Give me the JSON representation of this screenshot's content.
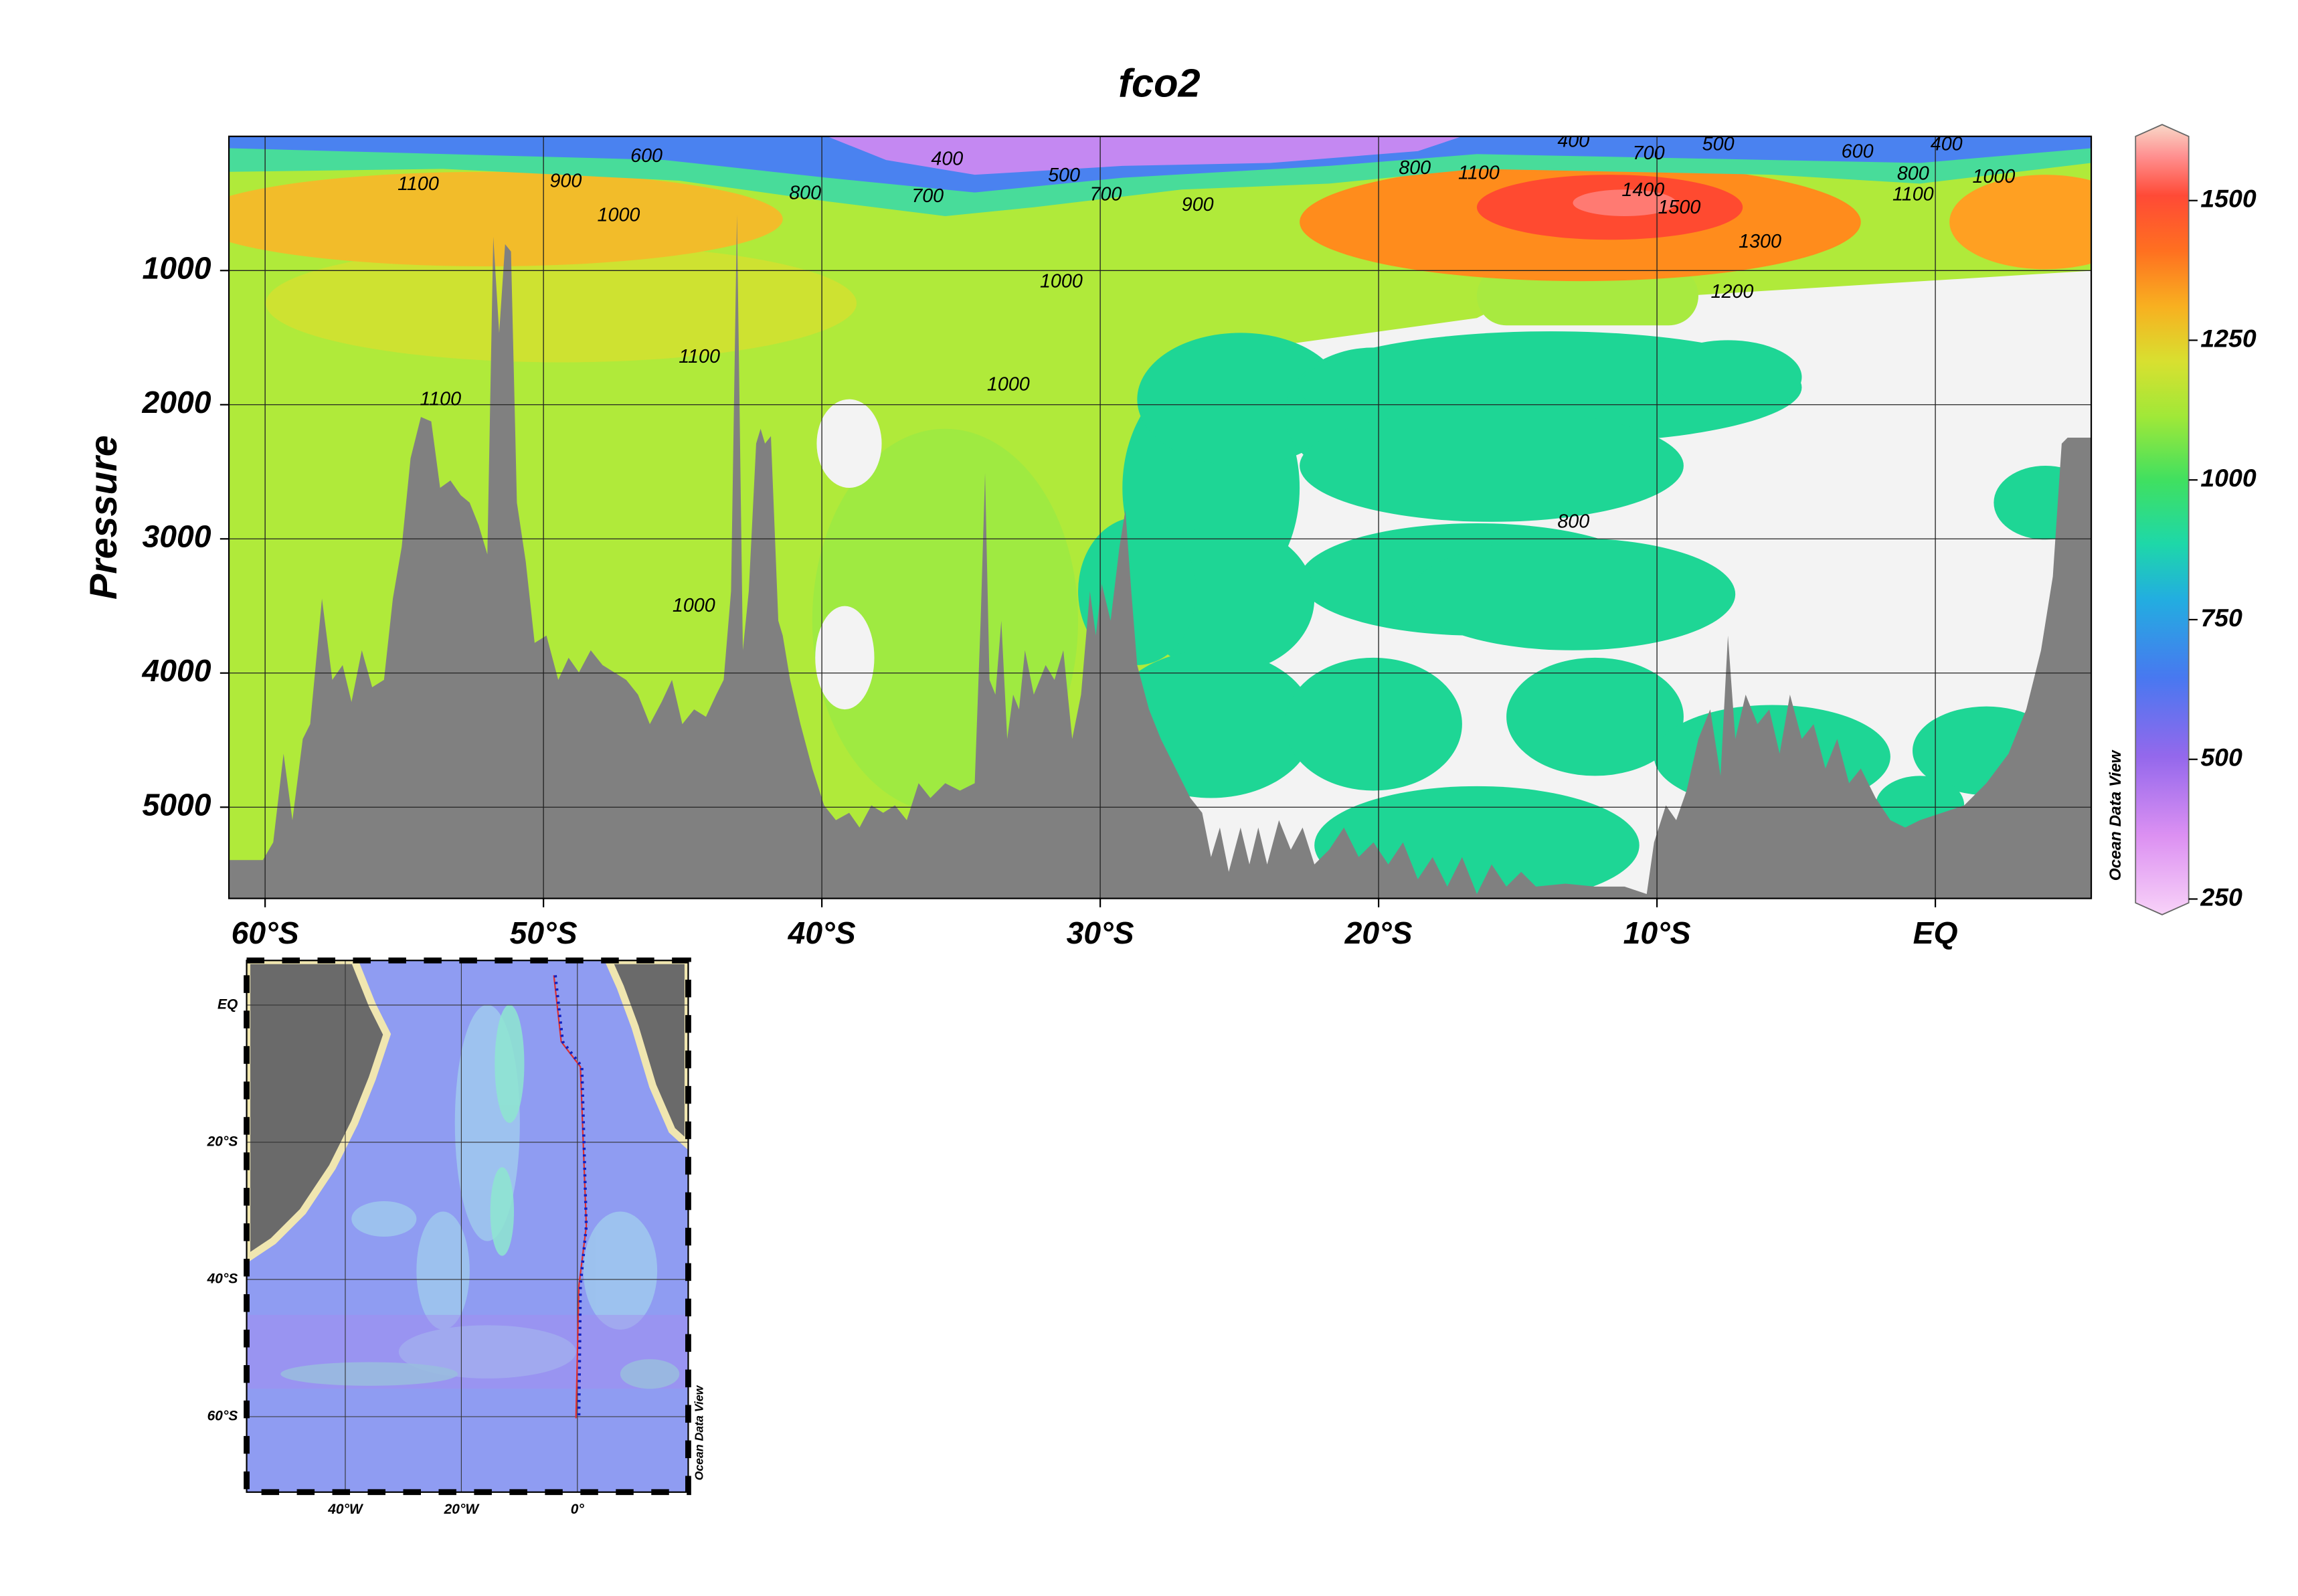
{
  "chart_data": {
    "type": "section",
    "title": "fco2",
    "y_label": "Pressure",
    "credit": "Ocean Data View",
    "xlim": [
      -61.3,
      5.6
    ],
    "xticks": [
      {
        "value": -60,
        "label": "60°S"
      },
      {
        "value": -50,
        "label": "50°S"
      },
      {
        "value": -40,
        "label": "40°S"
      },
      {
        "value": -30,
        "label": "30°S"
      },
      {
        "value": -20,
        "label": "20°S"
      },
      {
        "value": -10,
        "label": "10°S"
      },
      {
        "value": 0,
        "label": "EQ"
      }
    ],
    "ylim": [
      0,
      5680
    ],
    "y_reversed": true,
    "yticks": [
      1000,
      2000,
      3000,
      4000,
      5000
    ],
    "grid": true,
    "colorbar": {
      "lim": [
        222,
        1636
      ],
      "ticks": [
        250,
        500,
        750,
        1000,
        1250,
        1500
      ]
    },
    "contour_labels": [
      {
        "value": 600,
        "x": -46.3,
        "y": 154
      },
      {
        "value": 400,
        "x": -35.5,
        "y": 176
      },
      {
        "value": 500,
        "x": -31.3,
        "y": 297
      },
      {
        "value": 1100,
        "x": -54.5,
        "y": 363
      },
      {
        "value": 900,
        "x": -49.2,
        "y": 340
      },
      {
        "value": 1000,
        "x": -47.3,
        "y": 593
      },
      {
        "value": 800,
        "x": -40.6,
        "y": 429
      },
      {
        "value": 700,
        "x": -36.2,
        "y": 451
      },
      {
        "value": 700,
        "x": -29.8,
        "y": 440
      },
      {
        "value": 900,
        "x": -26.5,
        "y": 516
      },
      {
        "value": 800,
        "x": -18.7,
        "y": 242
      },
      {
        "value": 1100,
        "x": -16.4,
        "y": 280
      },
      {
        "value": 400,
        "x": -13.0,
        "y": 40
      },
      {
        "value": 700,
        "x": -10.3,
        "y": 132
      },
      {
        "value": 500,
        "x": -7.8,
        "y": 66
      },
      {
        "value": 600,
        "x": -2.8,
        "y": 121
      },
      {
        "value": 400,
        "x": 0.4,
        "y": 66
      },
      {
        "value": 800,
        "x": -0.8,
        "y": 286
      },
      {
        "value": 1000,
        "x": 2.1,
        "y": 308
      },
      {
        "value": 1100,
        "x": -0.8,
        "y": 440
      },
      {
        "value": 1400,
        "x": -10.5,
        "y": 407
      },
      {
        "value": 1500,
        "x": -9.2,
        "y": 538
      },
      {
        "value": 1300,
        "x": -6.3,
        "y": 791
      },
      {
        "value": 1200,
        "x": -7.3,
        "y": 1165
      },
      {
        "value": 1000,
        "x": -31.4,
        "y": 1088
      },
      {
        "value": 1000,
        "x": -33.3,
        "y": 1857
      },
      {
        "value": 1100,
        "x": -44.4,
        "y": 1648
      },
      {
        "value": 1100,
        "x": -53.7,
        "y": 1967
      },
      {
        "value": 1000,
        "x": -44.6,
        "y": 3505
      },
      {
        "value": 800,
        "x": -13.0,
        "y": 2879
      }
    ]
  },
  "map": {
    "xlim": [
      -57,
      19.1
    ],
    "ylim": [
      -71,
      6.5
    ],
    "xticks": [
      {
        "value": -40,
        "label": "40°W"
      },
      {
        "value": -20,
        "label": "20°W"
      },
      {
        "value": 0,
        "label": "0°"
      }
    ],
    "yticks": [
      {
        "value": 0,
        "label": "EQ"
      },
      {
        "value": -20,
        "label": "20°S"
      },
      {
        "value": -40,
        "label": "40°S"
      },
      {
        "value": -60,
        "label": "60°S"
      }
    ],
    "credit": "Ocean Data View"
  }
}
